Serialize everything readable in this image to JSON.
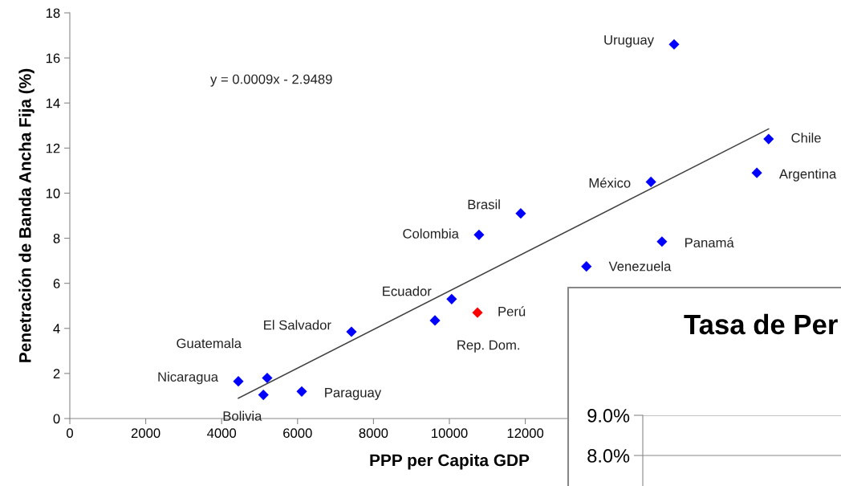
{
  "chart_data": [
    {
      "type": "scatter",
      "xlabel": "PPP per Capita GDP",
      "ylabel": "Penetración de Banda Ancha Fija (%)",
      "xlim": [
        0,
        20000
      ],
      "ylim": [
        0,
        18
      ],
      "xticks": [
        0,
        2000,
        4000,
        6000,
        8000,
        10000,
        12000
      ],
      "yticks": [
        0,
        2,
        4,
        6,
        8,
        10,
        12,
        14,
        16,
        18
      ],
      "grid": false,
      "legend": false,
      "marker": "diamond",
      "annotations": [
        "y = 0.0009x - 2.9489"
      ],
      "series": [
        {
          "type": "scatter",
          "x": [
            15920,
            18410,
            18100,
            15310,
            15600,
            13610,
            11880,
            10780,
            10060,
            10740,
            9620,
            7420,
            5200,
            4440,
            5100,
            6110
          ],
          "values": [
            16.6,
            12.4,
            10.9,
            10.5,
            7.85,
            6.75,
            9.1,
            8.15,
            5.3,
            4.7,
            4.35,
            3.85,
            1.8,
            1.65,
            1.05,
            1.2
          ],
          "value_labels": [
            "Uruguay",
            "Chile",
            "Argentina",
            "México",
            "Panamá",
            "Venezuela",
            "Brasil",
            "Colombia",
            "Ecuador",
            "Perú",
            "Rep. Dom.",
            "El Salvador",
            "Guatemala",
            "Nicaragua",
            "Bolivia",
            "Paraguay"
          ],
          "colors": [
            "#0000ff",
            "#0000ff",
            "#0000ff",
            "#0000ff",
            "#0000ff",
            "#0000ff",
            "#0000ff",
            "#0000ff",
            "#0000ff",
            "#ff0000",
            "#0000ff",
            "#0000ff",
            "#0000ff",
            "#0000ff",
            "#0000ff",
            "#0000ff"
          ]
        },
        {
          "type": "line",
          "x": [
            4440,
            18410
          ],
          "values": [
            0.9,
            12.85
          ],
          "color": "#404040",
          "marker": "none"
        }
      ]
    },
    {
      "type": "line",
      "title": "Tasa de Per",
      "ylim": [
        7.2,
        9.0
      ],
      "yticks": [
        {
          "value": 8.0,
          "label": "8.0%"
        },
        {
          "value": 9.0,
          "label": "9.0%"
        }
      ],
      "grid": "y",
      "tick_labels": "y",
      "categories": [
        null,
        null
      ]
    }
  ]
}
